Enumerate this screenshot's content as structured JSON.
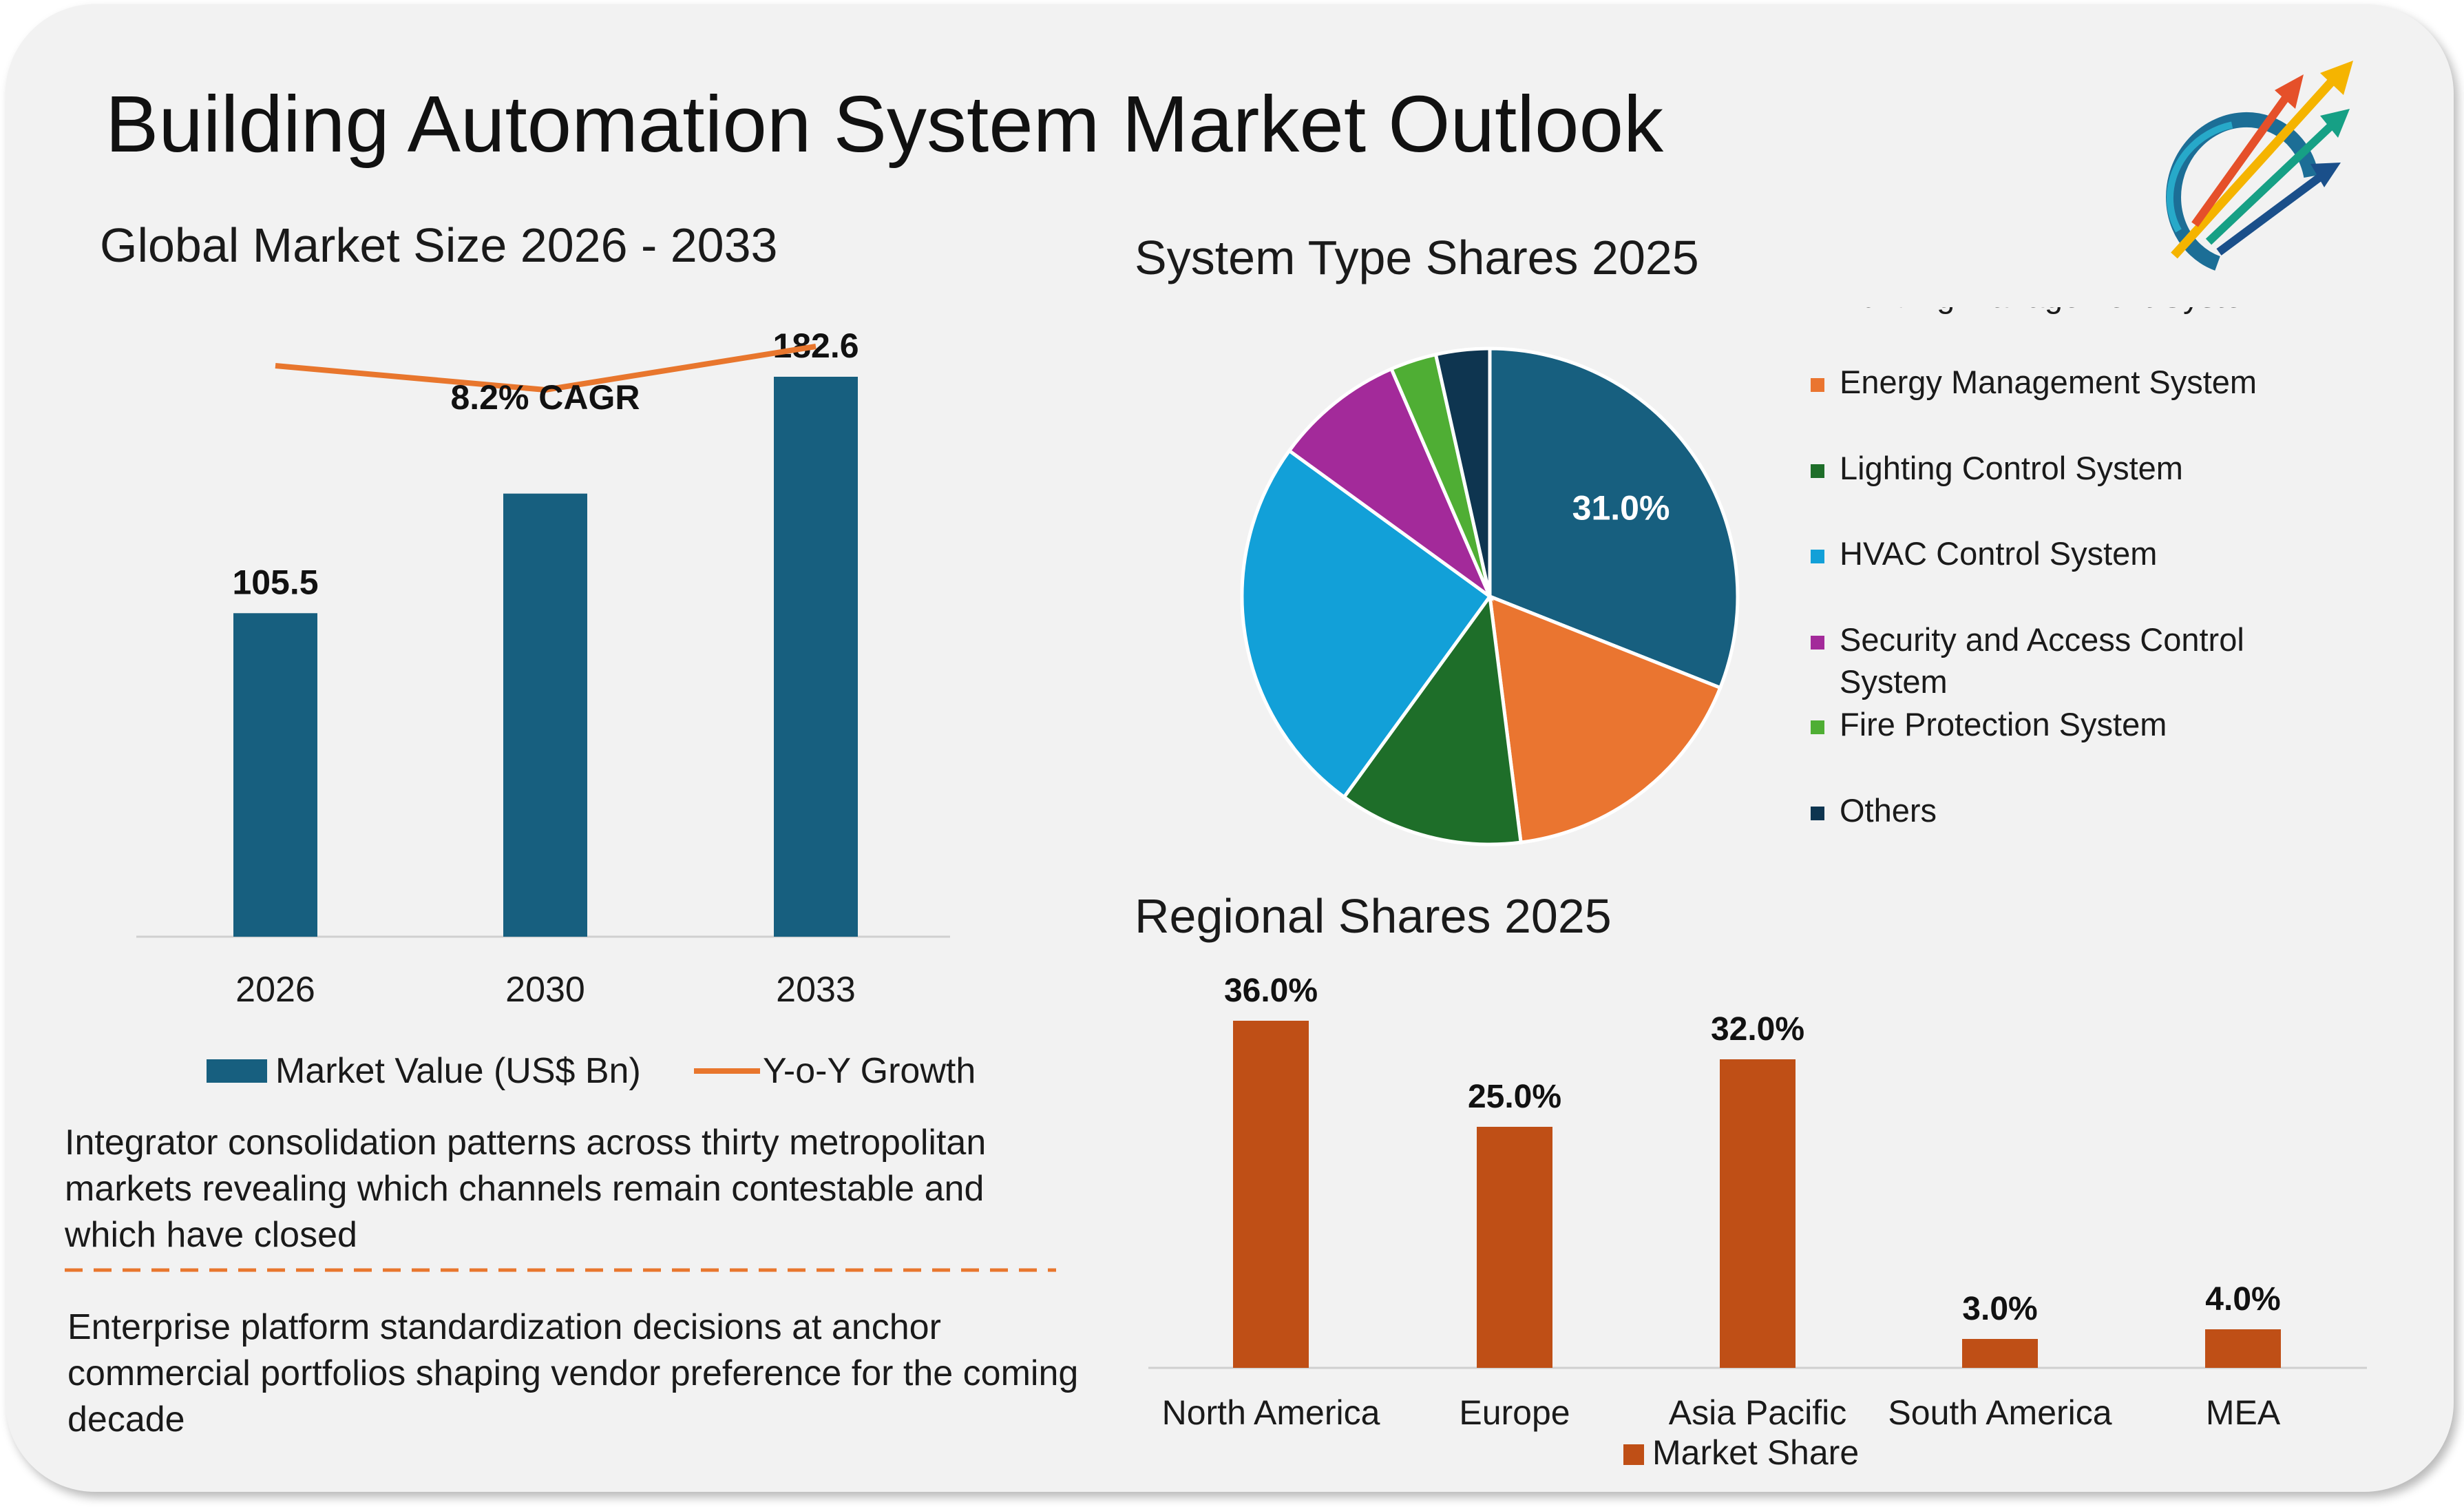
{
  "title": "Building Automation System Market Outlook",
  "logo": {
    "icon": "arrows-growth-logo-icon"
  },
  "global_market": {
    "heading": "Global Market Size 2026 - 2033",
    "cagr_label": "8.2% CAGR",
    "legend": {
      "market_value": "Market Value (US$ Bn)",
      "yoy": "Y-o-Y Growth"
    },
    "colors": {
      "bar": "#175f7f",
      "line": "#e8762d"
    }
  },
  "system_types": {
    "heading": "System Type Shares 2025",
    "slice_label": "31.0%",
    "colors": [
      "#175f7f",
      "#ea7530",
      "#1e6e29",
      "#12a0d8",
      "#a32a9a",
      "#4fae34",
      "#0e3550"
    ]
  },
  "regional": {
    "heading": "Regional Shares 2025",
    "legend": "Market Share",
    "color": "#bf4f16"
  },
  "notes": [
    "Integrator consolidation patterns across thirty metropolitan markets revealing which channels remain contestable and which have closed",
    "Enterprise platform standardization decisions at anchor commercial portfolios shaping vendor preference for the coming decade"
  ],
  "chart_data": [
    {
      "type": "bar",
      "title": "Global Market Size 2026 - 2033",
      "categories": [
        "2026",
        "2030",
        "2033"
      ],
      "series": [
        {
          "name": "Market Value (US$ Bn)",
          "type": "bar",
          "values": [
            105.5,
            144.5,
            182.6
          ],
          "labels": [
            "105.5",
            "",
            "182.6"
          ]
        },
        {
          "name": "Y-o-Y Growth",
          "type": "line",
          "values": [
            0.25,
            0.2,
            0.29
          ]
        }
      ],
      "annotation": "8.2% CAGR",
      "ylim": [
        0,
        200
      ],
      "grid": false,
      "legend": "bottom"
    },
    {
      "type": "pie",
      "title": "System Type Shares 2025",
      "labels": [
        "Building Management System",
        "Energy Management System",
        "Lighting Control System",
        "HVAC Control System",
        "Security and Access Control System",
        "Fire Protection System",
        "Others"
      ],
      "values": [
        31.0,
        17.0,
        12.0,
        25.0,
        8.5,
        3.0,
        3.5
      ],
      "data_labels": [
        "31.0%",
        "",
        "",
        "",
        "",
        "",
        ""
      ],
      "legend": "right"
    },
    {
      "type": "bar",
      "title": "Regional Shares 2025",
      "categories": [
        "North America",
        "Europe",
        "Asia Pacific",
        "South America",
        "MEA"
      ],
      "series": [
        {
          "name": "Market Share",
          "values": [
            36.0,
            25.0,
            32.0,
            3.0,
            4.0
          ],
          "labels": [
            "36.0%",
            "25.0%",
            "32.0%",
            "3.0%",
            "4.0%"
          ]
        }
      ],
      "ylim": [
        0,
        40
      ],
      "grid": false,
      "legend": "bottom"
    }
  ]
}
